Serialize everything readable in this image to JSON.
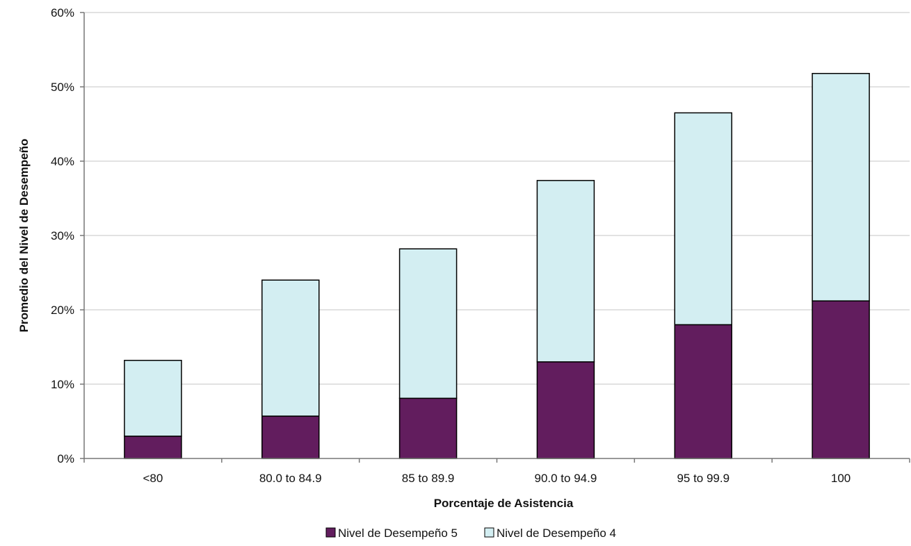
{
  "chart_data": {
    "type": "bar",
    "stacked": true,
    "categories": [
      "<80",
      "80.0 to 84.9",
      "85 to 89.9",
      "90.0 to 94.9",
      "95 to 99.9",
      "100"
    ],
    "series": [
      {
        "name": "Nivel de Desempeño 5",
        "color": "#621d5e",
        "values": [
          3.0,
          5.7,
          8.1,
          13.0,
          18.0,
          21.2
        ]
      },
      {
        "name": "Nivel de Desempeño 4",
        "color": "#d3eef2",
        "values": [
          10.2,
          18.3,
          20.1,
          24.4,
          28.5,
          30.6
        ]
      }
    ],
    "xlabel": "Porcentaje de Asistencia",
    "ylabel": "Promedio del Nivel de Desempeño",
    "ylim": [
      0,
      60
    ],
    "yticks": [
      0,
      10,
      20,
      30,
      40,
      50,
      60
    ],
    "ytick_labels": [
      "0%",
      "10%",
      "20%",
      "30%",
      "40%",
      "50%",
      "60%"
    ],
    "grid": true,
    "legend_position": "bottom-center"
  }
}
